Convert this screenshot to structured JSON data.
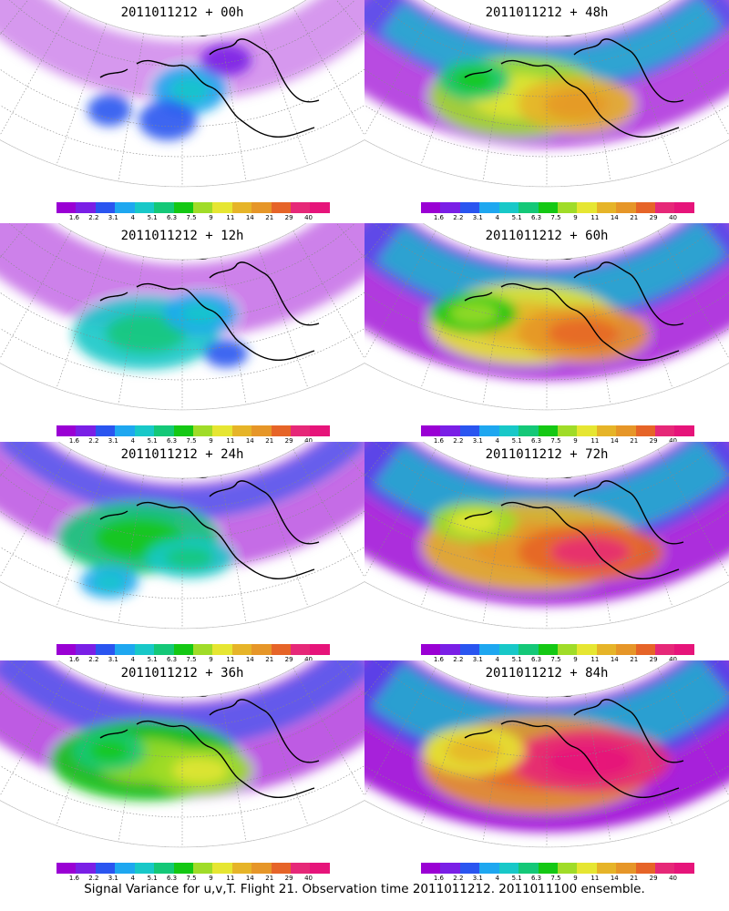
{
  "caption": "Signal Variance for u,v,T. Flight 21. Observation time 2011011212. 2011011100 ensemble.",
  "colorbar": {
    "colors": [
      "#9a00d4",
      "#7a1fe6",
      "#2a55f0",
      "#1ea7f0",
      "#18c8c8",
      "#14c878",
      "#14c814",
      "#a0dc28",
      "#e6e632",
      "#e6b428",
      "#e69628",
      "#e66428",
      "#e62878",
      "#e6147a"
    ],
    "labels": [
      "1.6",
      "2.2",
      "3.1",
      "4",
      "5.1",
      "6.3",
      "7.5",
      "9",
      "11",
      "14",
      "21",
      "29",
      "40"
    ]
  },
  "panels": [
    {
      "title": "2011011212 + 00h",
      "level": 0.08,
      "blobs": [
        [
          0.52,
          0.45,
          0.1,
          0.12,
          3
        ],
        [
          0.46,
          0.6,
          0.08,
          0.1,
          2
        ],
        [
          0.3,
          0.55,
          0.06,
          0.08,
          2
        ],
        [
          0.62,
          0.3,
          0.07,
          0.08,
          1
        ]
      ]
    },
    {
      "title": "2011011212 + 12h",
      "level": 0.22,
      "blobs": [
        [
          0.4,
          0.55,
          0.2,
          0.18,
          4
        ],
        [
          0.55,
          0.45,
          0.1,
          0.1,
          3
        ],
        [
          0.62,
          0.65,
          0.06,
          0.07,
          2
        ]
      ]
    },
    {
      "title": "2011011212 + 24h",
      "level": 0.35,
      "blobs": [
        [
          0.38,
          0.48,
          0.22,
          0.18,
          5
        ],
        [
          0.52,
          0.58,
          0.12,
          0.1,
          4
        ],
        [
          0.3,
          0.7,
          0.08,
          0.08,
          3
        ]
      ]
    },
    {
      "title": "2011011212 + 36h",
      "level": 0.45,
      "blobs": [
        [
          0.4,
          0.5,
          0.26,
          0.2,
          6
        ],
        [
          0.55,
          0.55,
          0.14,
          0.12,
          7
        ],
        [
          0.3,
          0.45,
          0.1,
          0.1,
          5
        ]
      ]
    },
    {
      "title": "2011011212 + 48h",
      "level": 0.55,
      "blobs": [
        [
          0.42,
          0.48,
          0.24,
          0.2,
          7
        ],
        [
          0.58,
          0.52,
          0.16,
          0.14,
          9
        ],
        [
          0.3,
          0.4,
          0.1,
          0.1,
          5
        ]
      ]
    },
    {
      "title": "2011011212 + 60h",
      "level": 0.65,
      "blobs": [
        [
          0.44,
          0.5,
          0.26,
          0.2,
          8
        ],
        [
          0.6,
          0.55,
          0.18,
          0.14,
          10
        ],
        [
          0.3,
          0.45,
          0.12,
          0.1,
          6
        ]
      ]
    },
    {
      "title": "2011011212 + 72h",
      "level": 0.72,
      "blobs": [
        [
          0.46,
          0.52,
          0.3,
          0.22,
          9
        ],
        [
          0.62,
          0.55,
          0.2,
          0.14,
          11
        ],
        [
          0.3,
          0.4,
          0.12,
          0.1,
          7
        ]
      ]
    },
    {
      "title": "2011011212 + 84h",
      "level": 0.8,
      "blobs": [
        [
          0.48,
          0.52,
          0.32,
          0.24,
          10
        ],
        [
          0.62,
          0.5,
          0.22,
          0.16,
          12
        ],
        [
          0.3,
          0.45,
          0.14,
          0.12,
          8
        ]
      ]
    }
  ]
}
